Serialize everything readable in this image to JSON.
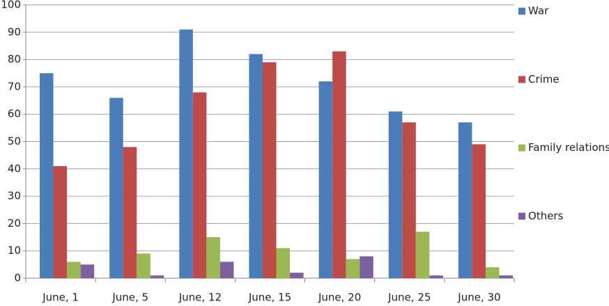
{
  "chart_data": {
    "type": "bar",
    "categories": [
      "June, 1",
      "June, 5",
      "June, 12",
      "June, 15",
      "June, 20",
      "June, 25",
      "June, 30"
    ],
    "series": [
      {
        "name": "War",
        "color": "#4a7ebb",
        "values": [
          75,
          66,
          91,
          82,
          72,
          61,
          57
        ]
      },
      {
        "name": "Crime",
        "color": "#be4b48",
        "values": [
          41,
          48,
          68,
          79,
          83,
          57,
          49
        ]
      },
      {
        "name": "Family relations",
        "color": "#98b954",
        "values": [
          6,
          9,
          15,
          11,
          7,
          17,
          4
        ]
      },
      {
        "name": "Others",
        "color": "#7d60a0",
        "values": [
          5,
          1,
          6,
          2,
          8,
          1,
          1
        ]
      }
    ],
    "ylim": [
      0,
      100
    ],
    "yticks": [
      0,
      10,
      20,
      30,
      40,
      50,
      60,
      70,
      80,
      90,
      100
    ],
    "grid": true,
    "legend": "right"
  }
}
